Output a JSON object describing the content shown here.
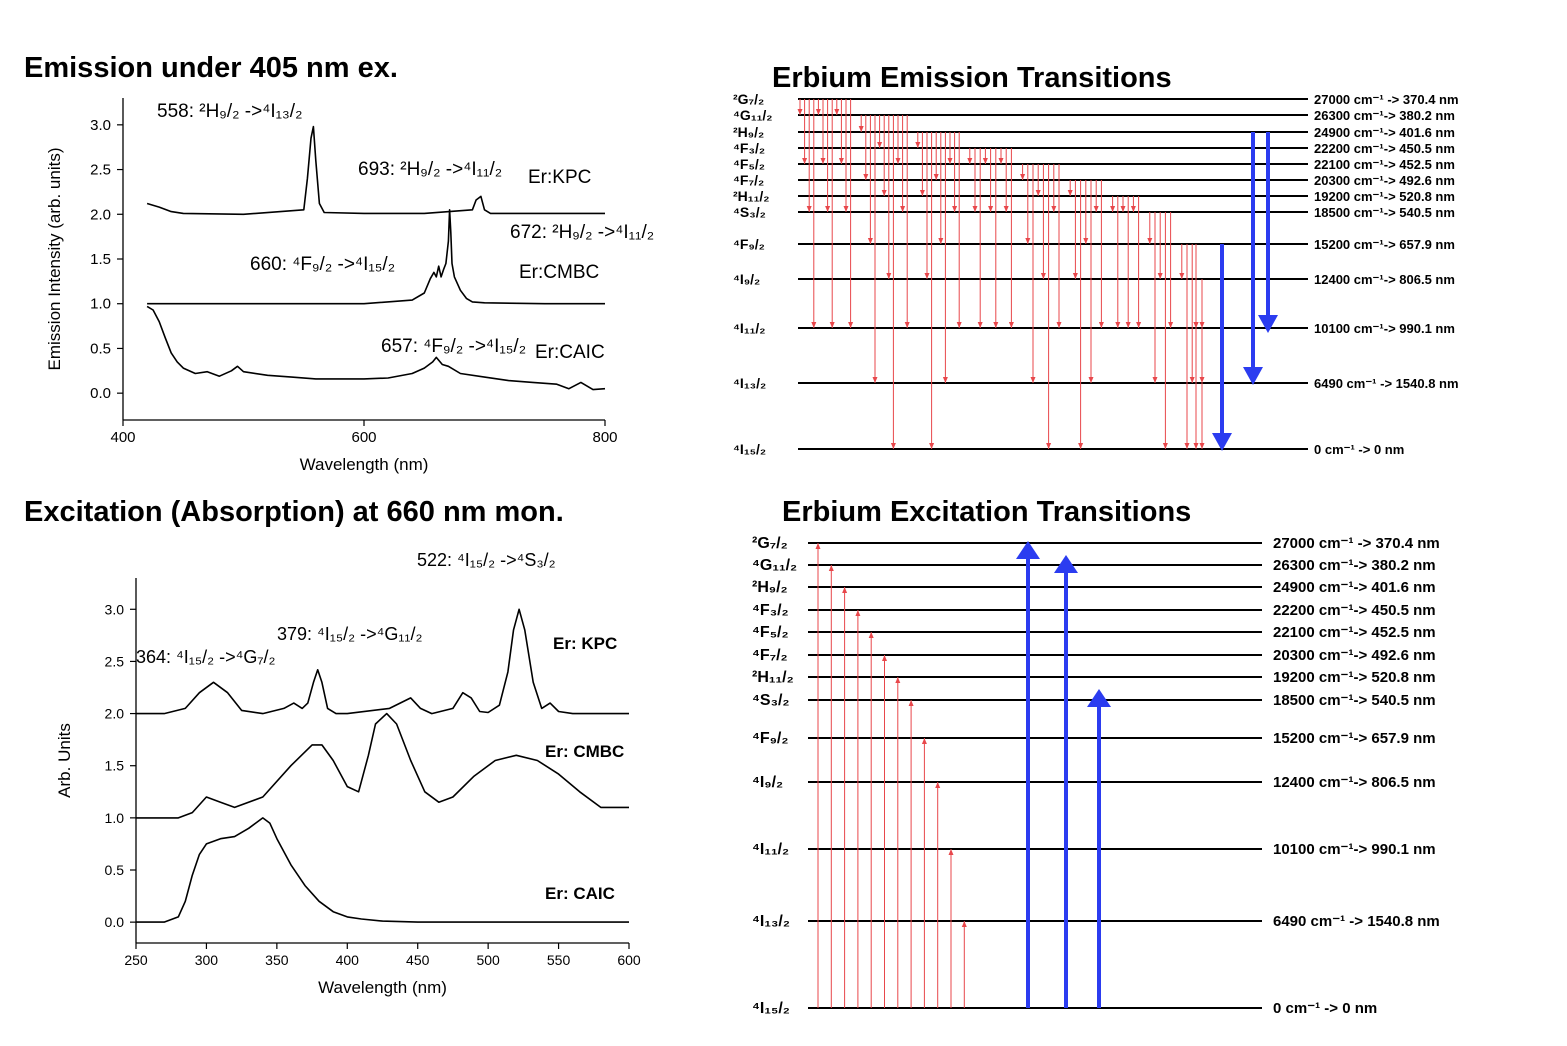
{
  "titles": {
    "emission_spectrum": "Emission under 405 nm ex.",
    "excitation_spectrum": "Excitation (Absorption) at 660 nm mon.",
    "emission_diagram": "Erbium Emission Transitions",
    "excitation_diagram": "Erbium Excitation Transitions"
  },
  "colors": {
    "curve": "#000000",
    "transition": "#e8474b",
    "pump": "#2b3cf0",
    "level": "#000000"
  },
  "chart_data": [
    {
      "type": "line",
      "name": "emission_spectrum",
      "title": "Emission under 405 nm ex.",
      "xlabel": "Wavelength (nm)",
      "ylabel": "Emission Intensity (arb. units)",
      "xlim": [
        400,
        800
      ],
      "ylim": [
        -0.3,
        3.3
      ],
      "xticks": [
        "400",
        "600",
        "800"
      ],
      "yticks": [
        "0.0",
        "0.5",
        "1.0",
        "1.5",
        "2.0",
        "2.5",
        "3.0"
      ],
      "grid": false,
      "series": [
        {
          "name": "Er:KPC",
          "x": [
            420,
            430,
            440,
            450,
            500,
            550,
            553,
            556,
            558,
            560,
            563,
            567,
            600,
            650,
            690,
            693,
            697,
            700,
            705,
            760,
            800
          ],
          "y": [
            2.12,
            2.08,
            2.03,
            2.01,
            2.0,
            2.05,
            2.4,
            2.85,
            2.98,
            2.6,
            2.12,
            2.02,
            2.01,
            2.01,
            2.05,
            2.16,
            2.2,
            2.05,
            2.01,
            2.01,
            2.01
          ]
        },
        {
          "name": "Er:CMBC",
          "x": [
            420,
            500,
            600,
            640,
            650,
            655,
            658,
            660,
            662,
            664,
            666,
            668,
            670,
            671,
            672,
            673,
            675,
            680,
            685,
            690,
            700,
            750,
            800
          ],
          "y": [
            1.0,
            1.0,
            1.0,
            1.04,
            1.12,
            1.28,
            1.35,
            1.3,
            1.42,
            1.3,
            1.38,
            1.45,
            1.7,
            2.05,
            1.8,
            1.45,
            1.3,
            1.15,
            1.06,
            1.02,
            1.01,
            1.0,
            1.0
          ]
        },
        {
          "name": "Er:CAIC",
          "x": [
            420,
            425,
            430,
            435,
            440,
            445,
            450,
            460,
            470,
            480,
            490,
            495,
            500,
            520,
            540,
            560,
            580,
            600,
            620,
            640,
            650,
            657,
            660,
            665,
            670,
            680,
            700,
            720,
            740,
            760,
            770,
            780,
            790,
            800
          ],
          "y": [
            0.97,
            0.93,
            0.8,
            0.62,
            0.45,
            0.35,
            0.28,
            0.22,
            0.24,
            0.19,
            0.25,
            0.3,
            0.24,
            0.2,
            0.18,
            0.16,
            0.16,
            0.16,
            0.17,
            0.22,
            0.28,
            0.35,
            0.4,
            0.32,
            0.3,
            0.22,
            0.18,
            0.14,
            0.12,
            0.1,
            0.05,
            0.12,
            0.04,
            0.05
          ]
        }
      ],
      "labels": [
        {
          "text": "558: ²H₉/₂ ->⁴I₁₃/₂"
        },
        {
          "text": "693: ²H₉/₂ ->⁴I₁₁/₂"
        },
        {
          "text": "Er:KPC"
        },
        {
          "text": "672: ²H₉/₂ ->⁴I₁₁/₂"
        },
        {
          "text": "660: ⁴F₉/₂ ->⁴I₁₅/₂"
        },
        {
          "text": "Er:CMBC"
        },
        {
          "text": "657: ⁴F₉/₂ ->⁴I₁₅/₂"
        },
        {
          "text": "Er:CAIC"
        }
      ]
    },
    {
      "type": "line",
      "name": "excitation_spectrum",
      "title": "Excitation (Absorption) at 660 nm mon.",
      "xlabel": "Wavelength (nm)",
      "ylabel": "Arb. Units",
      "xlim": [
        250,
        600
      ],
      "ylim": [
        -0.2,
        3.3
      ],
      "xticks": [
        "250",
        "300",
        "350",
        "400",
        "450",
        "500",
        "550",
        "600"
      ],
      "yticks": [
        "0.0",
        "0.5",
        "1.0",
        "1.5",
        "2.0",
        "2.5",
        "3.0"
      ],
      "grid": false,
      "series": [
        {
          "name": "Er: KPC",
          "x": [
            250,
            270,
            285,
            295,
            305,
            315,
            325,
            340,
            355,
            362,
            368,
            372,
            376,
            379,
            382,
            386,
            392,
            400,
            430,
            445,
            452,
            460,
            475,
            482,
            488,
            494,
            500,
            508,
            514,
            518,
            522,
            526,
            532,
            538,
            544,
            550,
            560,
            580,
            600
          ],
          "y": [
            2.0,
            2.0,
            2.05,
            2.2,
            2.3,
            2.2,
            2.03,
            2.0,
            2.05,
            2.1,
            2.05,
            2.1,
            2.3,
            2.42,
            2.3,
            2.05,
            2.0,
            2.0,
            2.05,
            2.15,
            2.05,
            2.0,
            2.05,
            2.2,
            2.15,
            2.02,
            2.01,
            2.08,
            2.4,
            2.8,
            3.0,
            2.8,
            2.3,
            2.05,
            2.1,
            2.02,
            2.0,
            2.0,
            2.0
          ]
        },
        {
          "name": "Er: CMBC",
          "x": [
            250,
            280,
            290,
            300,
            310,
            320,
            340,
            360,
            375,
            382,
            390,
            400,
            408,
            415,
            420,
            428,
            435,
            445,
            455,
            465,
            475,
            490,
            505,
            520,
            535,
            550,
            565,
            580,
            600
          ],
          "y": [
            1.0,
            1.0,
            1.05,
            1.2,
            1.15,
            1.1,
            1.2,
            1.5,
            1.7,
            1.7,
            1.55,
            1.3,
            1.25,
            1.6,
            1.9,
            2.0,
            1.9,
            1.55,
            1.25,
            1.15,
            1.2,
            1.4,
            1.55,
            1.6,
            1.55,
            1.42,
            1.25,
            1.1,
            1.1
          ]
        },
        {
          "name": "Er: CAIC",
          "x": [
            250,
            270,
            280,
            285,
            290,
            295,
            300,
            310,
            320,
            330,
            335,
            340,
            345,
            350,
            360,
            370,
            380,
            390,
            400,
            410,
            425,
            450,
            600
          ],
          "y": [
            0.0,
            0.0,
            0.05,
            0.2,
            0.45,
            0.65,
            0.75,
            0.8,
            0.82,
            0.9,
            0.95,
            1.0,
            0.95,
            0.8,
            0.55,
            0.35,
            0.2,
            0.1,
            0.05,
            0.03,
            0.01,
            0.0,
            0.0
          ]
        }
      ],
      "labels": [
        {
          "text": "522: ⁴I₁₅/₂ ->⁴S₃/₂"
        },
        {
          "text": "379: ⁴I₁₅/₂ ->⁴G₁₁/₂"
        },
        {
          "text": "364: ⁴I₁₅/₂ ->⁴G₇/₂"
        },
        {
          "text": "Er: KPC"
        },
        {
          "text": "Er: CMBC"
        },
        {
          "text": "Er: CAIC"
        }
      ]
    }
  ],
  "emission_levels": [
    {
      "term": "²G₇/₂",
      "energy": "27000 cm⁻¹ -> 370.4 nm"
    },
    {
      "term": "⁴G₁₁/₂",
      "energy": "26300 cm⁻¹-> 380.2 nm"
    },
    {
      "term": "²H₉/₂",
      "energy": "24900 cm⁻¹-> 401.6 nm"
    },
    {
      "term": "⁴F₃/₂",
      "energy": "22200 cm⁻¹-> 450.5 nm"
    },
    {
      "term": "⁴F₅/₂",
      "energy": "22100 cm⁻¹-> 452.5 nm"
    },
    {
      "term": "⁴F₇/₂",
      "energy": "20300 cm⁻¹-> 492.6 nm"
    },
    {
      "term": "²H₁₁/₂",
      "energy": "19200 cm⁻¹-> 520.8 nm"
    },
    {
      "term": "⁴S₃/₂",
      "energy": "18500 cm⁻¹-> 540.5 nm"
    },
    {
      "term": "⁴F₉/₂",
      "energy": "15200 cm⁻¹-> 657.9 nm"
    },
    {
      "term": "⁴I₉/₂",
      "energy": "12400 cm⁻¹-> 806.5 nm"
    },
    {
      "term": "⁴I₁₁/₂",
      "energy": "10100 cm⁻¹-> 990.1 nm"
    },
    {
      "term": "⁴I₁₃/₂",
      "energy": "6490 cm⁻¹ -> 1540.8 nm"
    },
    {
      "term": "⁴I₁₅/₂",
      "energy": "0 cm⁻¹    -> 0 nm"
    }
  ],
  "excitation_levels": [
    {
      "term": "²G₇/₂",
      "energy": "27000 cm⁻¹ -> 370.4 nm"
    },
    {
      "term": "⁴G₁₁/₂",
      "energy": "26300 cm⁻¹-> 380.2 nm"
    },
    {
      "term": "²H₉/₂",
      "energy": "24900 cm⁻¹-> 401.6 nm"
    },
    {
      "term": "⁴F₃/₂",
      "energy": "22200 cm⁻¹-> 450.5 nm"
    },
    {
      "term": "⁴F₅/₂",
      "energy": "22100 cm⁻¹-> 452.5 nm"
    },
    {
      "term": "⁴F₇/₂",
      "energy": "20300 cm⁻¹-> 492.6 nm"
    },
    {
      "term": "²H₁₁/₂",
      "energy": "19200 cm⁻¹-> 520.8 nm"
    },
    {
      "term": "⁴S₃/₂",
      "energy": "18500 cm⁻¹-> 540.5 nm"
    },
    {
      "term": "⁴F₉/₂",
      "energy": "15200 cm⁻¹-> 657.9 nm"
    },
    {
      "term": "⁴I₉/₂",
      "energy": "12400 cm⁻¹-> 806.5 nm"
    },
    {
      "term": "⁴I₁₁/₂",
      "energy": "10100 cm⁻¹-> 990.1 nm"
    },
    {
      "term": "⁴I₁₃/₂",
      "energy": "6490 cm⁻¹ -> 1540.8 nm"
    },
    {
      "term": "⁴I₁₅/₂",
      "energy": "0 cm⁻¹    -> 0 nm"
    }
  ],
  "emission_pumps": [
    {
      "from": "²H₉/₂",
      "to": "⁴I₁₃/₂"
    },
    {
      "from": "²H₉/₂",
      "to": "⁴I₁₁/₂"
    },
    {
      "from": "⁴F₉/₂",
      "to": "⁴I₁₅/₂"
    }
  ],
  "excitation_pumps": [
    {
      "from": "⁴I₁₅/₂",
      "to": "²G₇/₂"
    },
    {
      "from": "⁴I₁₅/₂",
      "to": "⁴G₁₁/₂"
    },
    {
      "from": "⁴I₁₅/₂",
      "to": "⁴S₃/₂"
    }
  ]
}
